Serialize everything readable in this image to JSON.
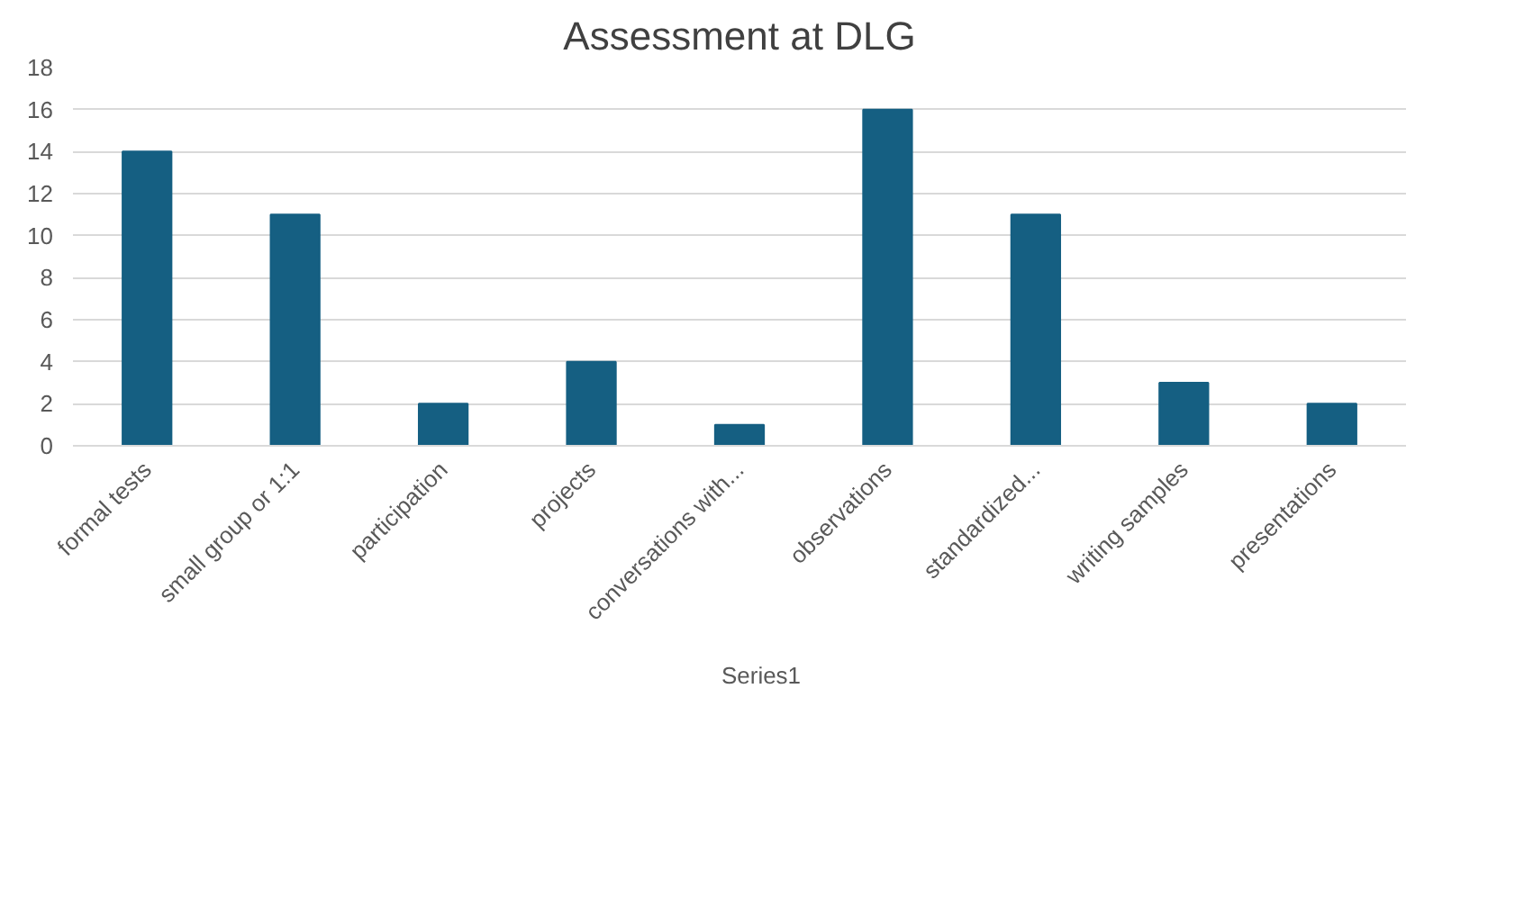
{
  "chart_data": {
    "type": "bar",
    "title": "Assessment at DLG",
    "categories": [
      "formal tests",
      "small group or 1:1",
      "participation",
      "projects",
      "conversations with...",
      "observations",
      "standardized...",
      "writing samples",
      "presentations"
    ],
    "series": [
      {
        "name": "Series1",
        "color": "#155f82",
        "values": [
          14,
          11,
          2,
          4,
          1,
          16,
          11,
          3,
          2
        ]
      }
    ],
    "ylim": [
      0,
      18
    ],
    "yticks": [
      0,
      2,
      4,
      6,
      8,
      10,
      12,
      14,
      16,
      18
    ],
    "grid": "y",
    "legend": "bottom"
  }
}
